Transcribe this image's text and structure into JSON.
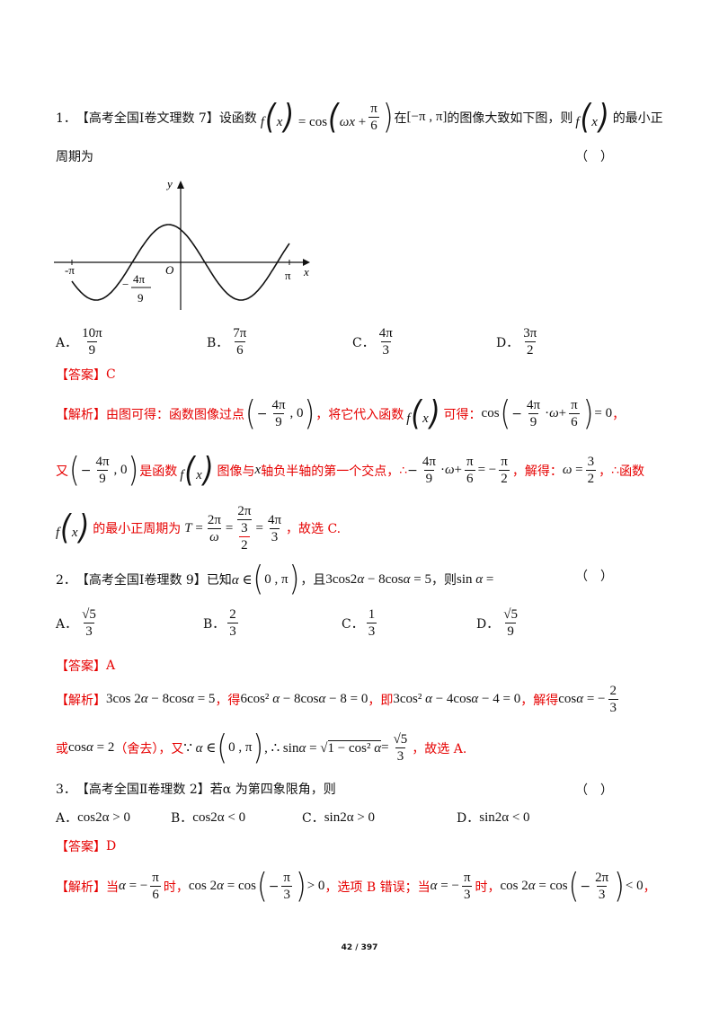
{
  "q1": {
    "num": "1．",
    "source": "【高考全国Ⅰ卷文理数 7】",
    "stem_a": "设函数",
    "stem_b": "在",
    "stem_c": "的图像大致如下图，则",
    "stem_d": "的最小正",
    "stem_line2": "周期为",
    "blank": "（　）",
    "graph": {
      "y_label": "y",
      "x_label": "x",
      "origin_label": "O",
      "neg_pi_label": "-π",
      "pi_label": "π",
      "mark_num": "4π",
      "mark_den": "9",
      "mark_sign": "−"
    },
    "options": [
      {
        "letter": "A．",
        "num": "10π",
        "den": "9"
      },
      {
        "letter": "B．",
        "num": "7π",
        "den": "6"
      },
      {
        "letter": "C．",
        "num": "4π",
        "den": "3"
      },
      {
        "letter": "D．",
        "num": "3π",
        "den": "2"
      }
    ],
    "answer_tag": "【答案】",
    "answer": "C",
    "analysis_tag": "【解析】",
    "a1": "由图可得：函数图像过点",
    "a2": "，将它代入函数",
    "a3": "可得：",
    "a4": "又",
    "a5": "是函数",
    "a6": "图像与",
    "a7": "轴负半轴的第一个交点，",
    "a8": "，解得：",
    "a9": "，",
    "a10": "函数",
    "a11": "的最小正周期为",
    "a12": "，故选 C."
  },
  "q2": {
    "num": "2．",
    "source": "【高考全国Ⅰ卷理数 9】",
    "stem_a": "已知",
    "stem_b": "，且",
    "stem_c": "，则",
    "blank": "（　）",
    "options": [
      {
        "letter": "A．",
        "num": "√5",
        "den": "3"
      },
      {
        "letter": "B．",
        "num": "2",
        "den": "3"
      },
      {
        "letter": "C．",
        "num": "1",
        "den": "3"
      },
      {
        "letter": "D．",
        "num": "√5",
        "den": "9"
      }
    ],
    "answer_tag": "【答案】",
    "answer": "A",
    "analysis_tag": "【解析】",
    "b1": "，得",
    "b2": "，即",
    "b3": "，解得",
    "b4": "或",
    "b5": "（舍去），又",
    "b6": "，故选 A."
  },
  "q3": {
    "num": "3．",
    "source": "【高考全国Ⅱ卷理数 2】",
    "stem": "若α 为第四象限角，则",
    "blank": "（　）",
    "options": [
      {
        "letter": "A．",
        "text": "cos2α > 0"
      },
      {
        "letter": "B．",
        "text": "cos2α < 0"
      },
      {
        "letter": "C．",
        "text": "sin2α > 0"
      },
      {
        "letter": "D．",
        "text": "sin2α < 0"
      }
    ],
    "answer_tag": "【答案】",
    "answer": "D",
    "analysis_tag": "【解析】",
    "c1": "当",
    "c2": "时，",
    "c3": "，选项 B 错误；当",
    "c4": "时，",
    "c5": "，"
  },
  "page_num": "42 / 397"
}
